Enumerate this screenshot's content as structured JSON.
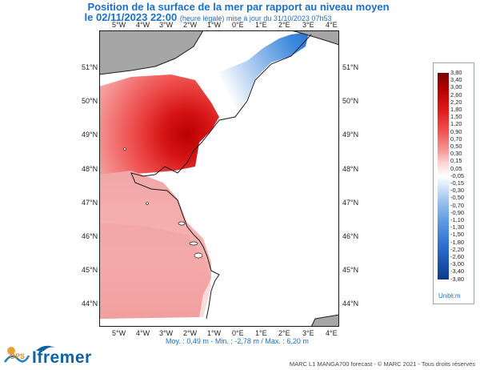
{
  "header": {
    "title": "Position de la surface de la mer par rapport au niveau moyen",
    "date_line": "le 02/11/2023 22:00",
    "update_note": "(heure légale) mise à jour du 31/10/2023 07h53"
  },
  "map": {
    "lon_labels": [
      "5°W",
      "4°W",
      "3°W",
      "2°W",
      "1°W",
      "0°E",
      "1°E",
      "2°E",
      "3°E",
      "4°E"
    ],
    "lat_labels": [
      "51°N",
      "50°N",
      "49°N",
      "48°N",
      "47°N",
      "46°N",
      "45°N",
      "44°N"
    ],
    "colors": {
      "land": "#a6a6a6",
      "gap": "#ffffff"
    }
  },
  "legend": {
    "values": [
      "3,80",
      "3,40",
      "3,00",
      "2,60",
      "2,20",
      "1,80",
      "1,50",
      "1,20",
      "0,90",
      "0,70",
      "0,50",
      "0,30",
      "0,15",
      "0,05",
      "-0,05",
      "-0,15",
      "-0,30",
      "-0,50",
      "-0,70",
      "-0,90",
      "-1,10",
      "-1,30",
      "-1,50",
      "-1,80",
      "-2,20",
      "-2,60",
      "-3,00",
      "-3,40",
      "-3,80"
    ],
    "unit": "Unité:m",
    "colors": {
      "top": "#7a0000",
      "mid": "#ffffff",
      "bottom": "#0d3a8a"
    }
  },
  "stats": {
    "text": "Moy. : 0,49 m  -  Min. : -2,78 m / Max. : 6,20 m"
  },
  "logos": {
    "ops": "OPS",
    "ifremer": "Ifremer"
  },
  "copyright": "MARC L1 MANGA700 forecast - © MARC 2021 - Tous droits réservés"
}
